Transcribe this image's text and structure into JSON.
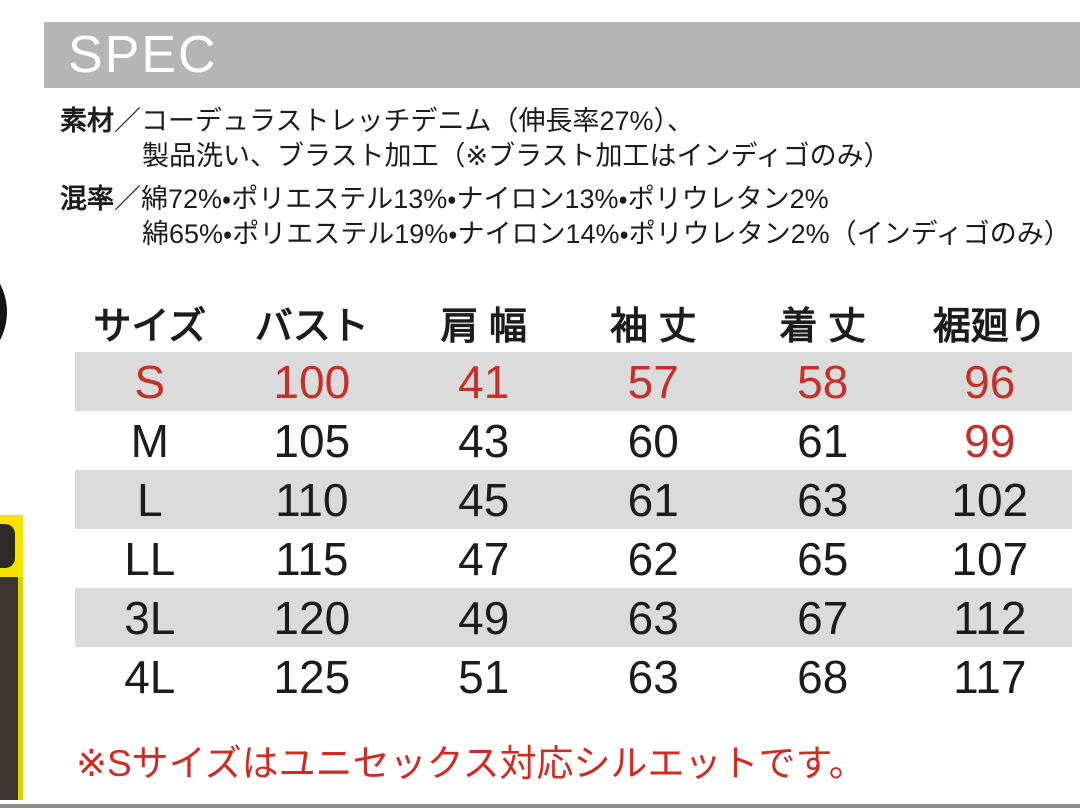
{
  "header": {
    "title": "SPEC",
    "bar_color": "#b5b5b5"
  },
  "spec_info": {
    "material_label": "素材",
    "separator": "／",
    "material_line1": "コーデュラストレッチデニム（伸長率27%）、",
    "material_line2": "製品洗い、ブラスト加工（※ブラスト加工はインディゴのみ）",
    "blend_label": "混率",
    "blend_line1": "綿72%・ポリエステル13%・ナイロン13%・ポリウレタン2%",
    "blend_line2": "綿65%・ポリエステル19%・ナイロン14%・ポリウレタン2%（インディゴのみ）"
  },
  "size_table": {
    "columns": [
      "サイズ",
      "バスト",
      "肩 幅",
      "袖 丈",
      "着 丈",
      "裾廻り"
    ],
    "rows": [
      {
        "cells": [
          "S",
          "100",
          "41",
          "57",
          "58",
          "96"
        ],
        "red_cells": [
          0,
          1,
          2,
          3,
          4,
          5
        ],
        "shaded": true
      },
      {
        "cells": [
          "M",
          "105",
          "43",
          "60",
          "61",
          "99"
        ],
        "red_cells": [
          5
        ],
        "shaded": false
      },
      {
        "cells": [
          "L",
          "110",
          "45",
          "61",
          "63",
          "102"
        ],
        "red_cells": [],
        "shaded": true
      },
      {
        "cells": [
          "LL",
          "115",
          "47",
          "62",
          "65",
          "107"
        ],
        "red_cells": [],
        "shaded": false
      },
      {
        "cells": [
          "3L",
          "120",
          "49",
          "63",
          "67",
          "112"
        ],
        "red_cells": [],
        "shaded": true
      },
      {
        "cells": [
          "4L",
          "125",
          "51",
          "63",
          "68",
          "117"
        ],
        "red_cells": [],
        "shaded": false
      }
    ]
  },
  "note": {
    "text": "※Sサイズはユニセックス対応シルエットです。"
  },
  "colors": {
    "accent_red": "#c5302b",
    "note_red": "#cf2b22",
    "row_shade": "#dbdbdb",
    "header_gray": "#b5b5b5",
    "badge_yellow": "#f6e400",
    "badge_dark": "#3c3430",
    "divider_gray": "#8f8f8f"
  }
}
